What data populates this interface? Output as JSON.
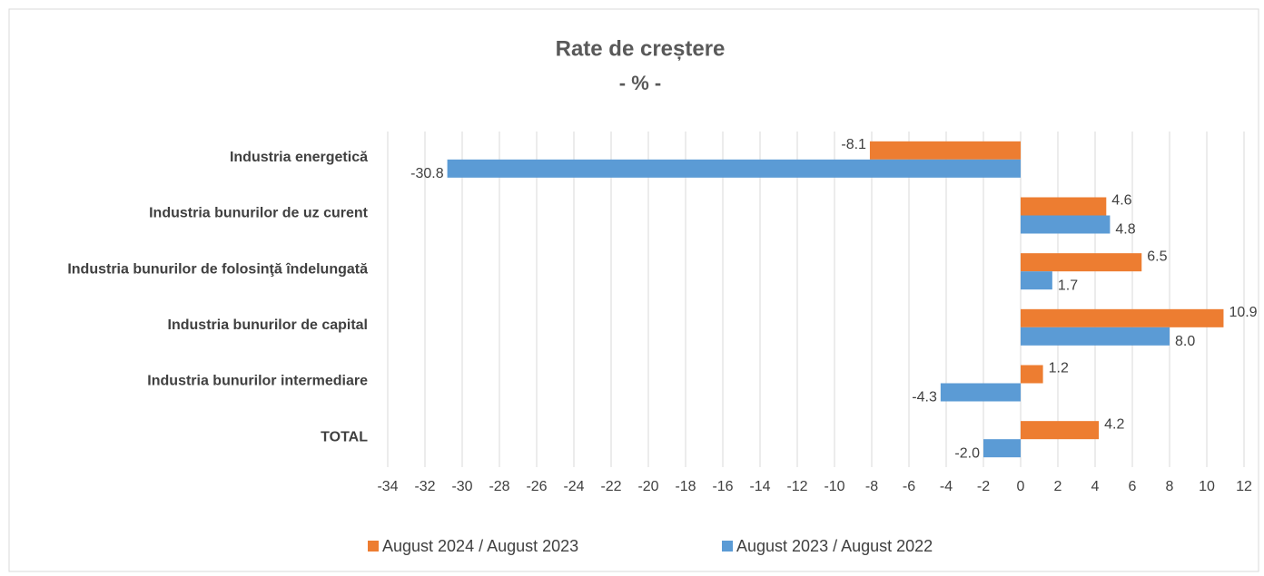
{
  "chart_data": {
    "type": "barh",
    "title": "Rate de creștere",
    "subtitle": "- % -",
    "categories": [
      "Industria energetică",
      "Industria bunurilor de uz curent",
      "Industria bunurilor de folosinţă  îndelungată",
      "Industria bunurilor de capital",
      "Industria bunurilor intermediare",
      "TOTAL"
    ],
    "series": [
      {
        "name": "August 2024 / August 2023",
        "color": "#ed7d31",
        "values": [
          -8.1,
          4.6,
          6.5,
          10.9,
          1.2,
          4.2
        ],
        "value_labels": [
          "-8.1",
          "4.6",
          "6.5",
          "10.9",
          "1.2",
          "4.2"
        ]
      },
      {
        "name": "August 2023 / August 2022",
        "color": "#5b9bd5",
        "values": [
          -30.8,
          4.8,
          1.7,
          8,
          -4.3,
          -2
        ],
        "value_labels": [
          "-30.8",
          "4.8",
          "1.7",
          "8.0",
          "-4.3",
          "-2.0"
        ]
      }
    ],
    "xlim": [
      -34,
      12
    ],
    "xticks": [
      -34,
      -32,
      -30,
      -28,
      -26,
      -24,
      -22,
      -20,
      -18,
      -16,
      -14,
      -12,
      -10,
      -8,
      -6,
      -4,
      -2,
      0,
      2,
      4,
      6,
      8,
      10,
      12
    ],
    "grid": true,
    "legend": "bottom"
  }
}
